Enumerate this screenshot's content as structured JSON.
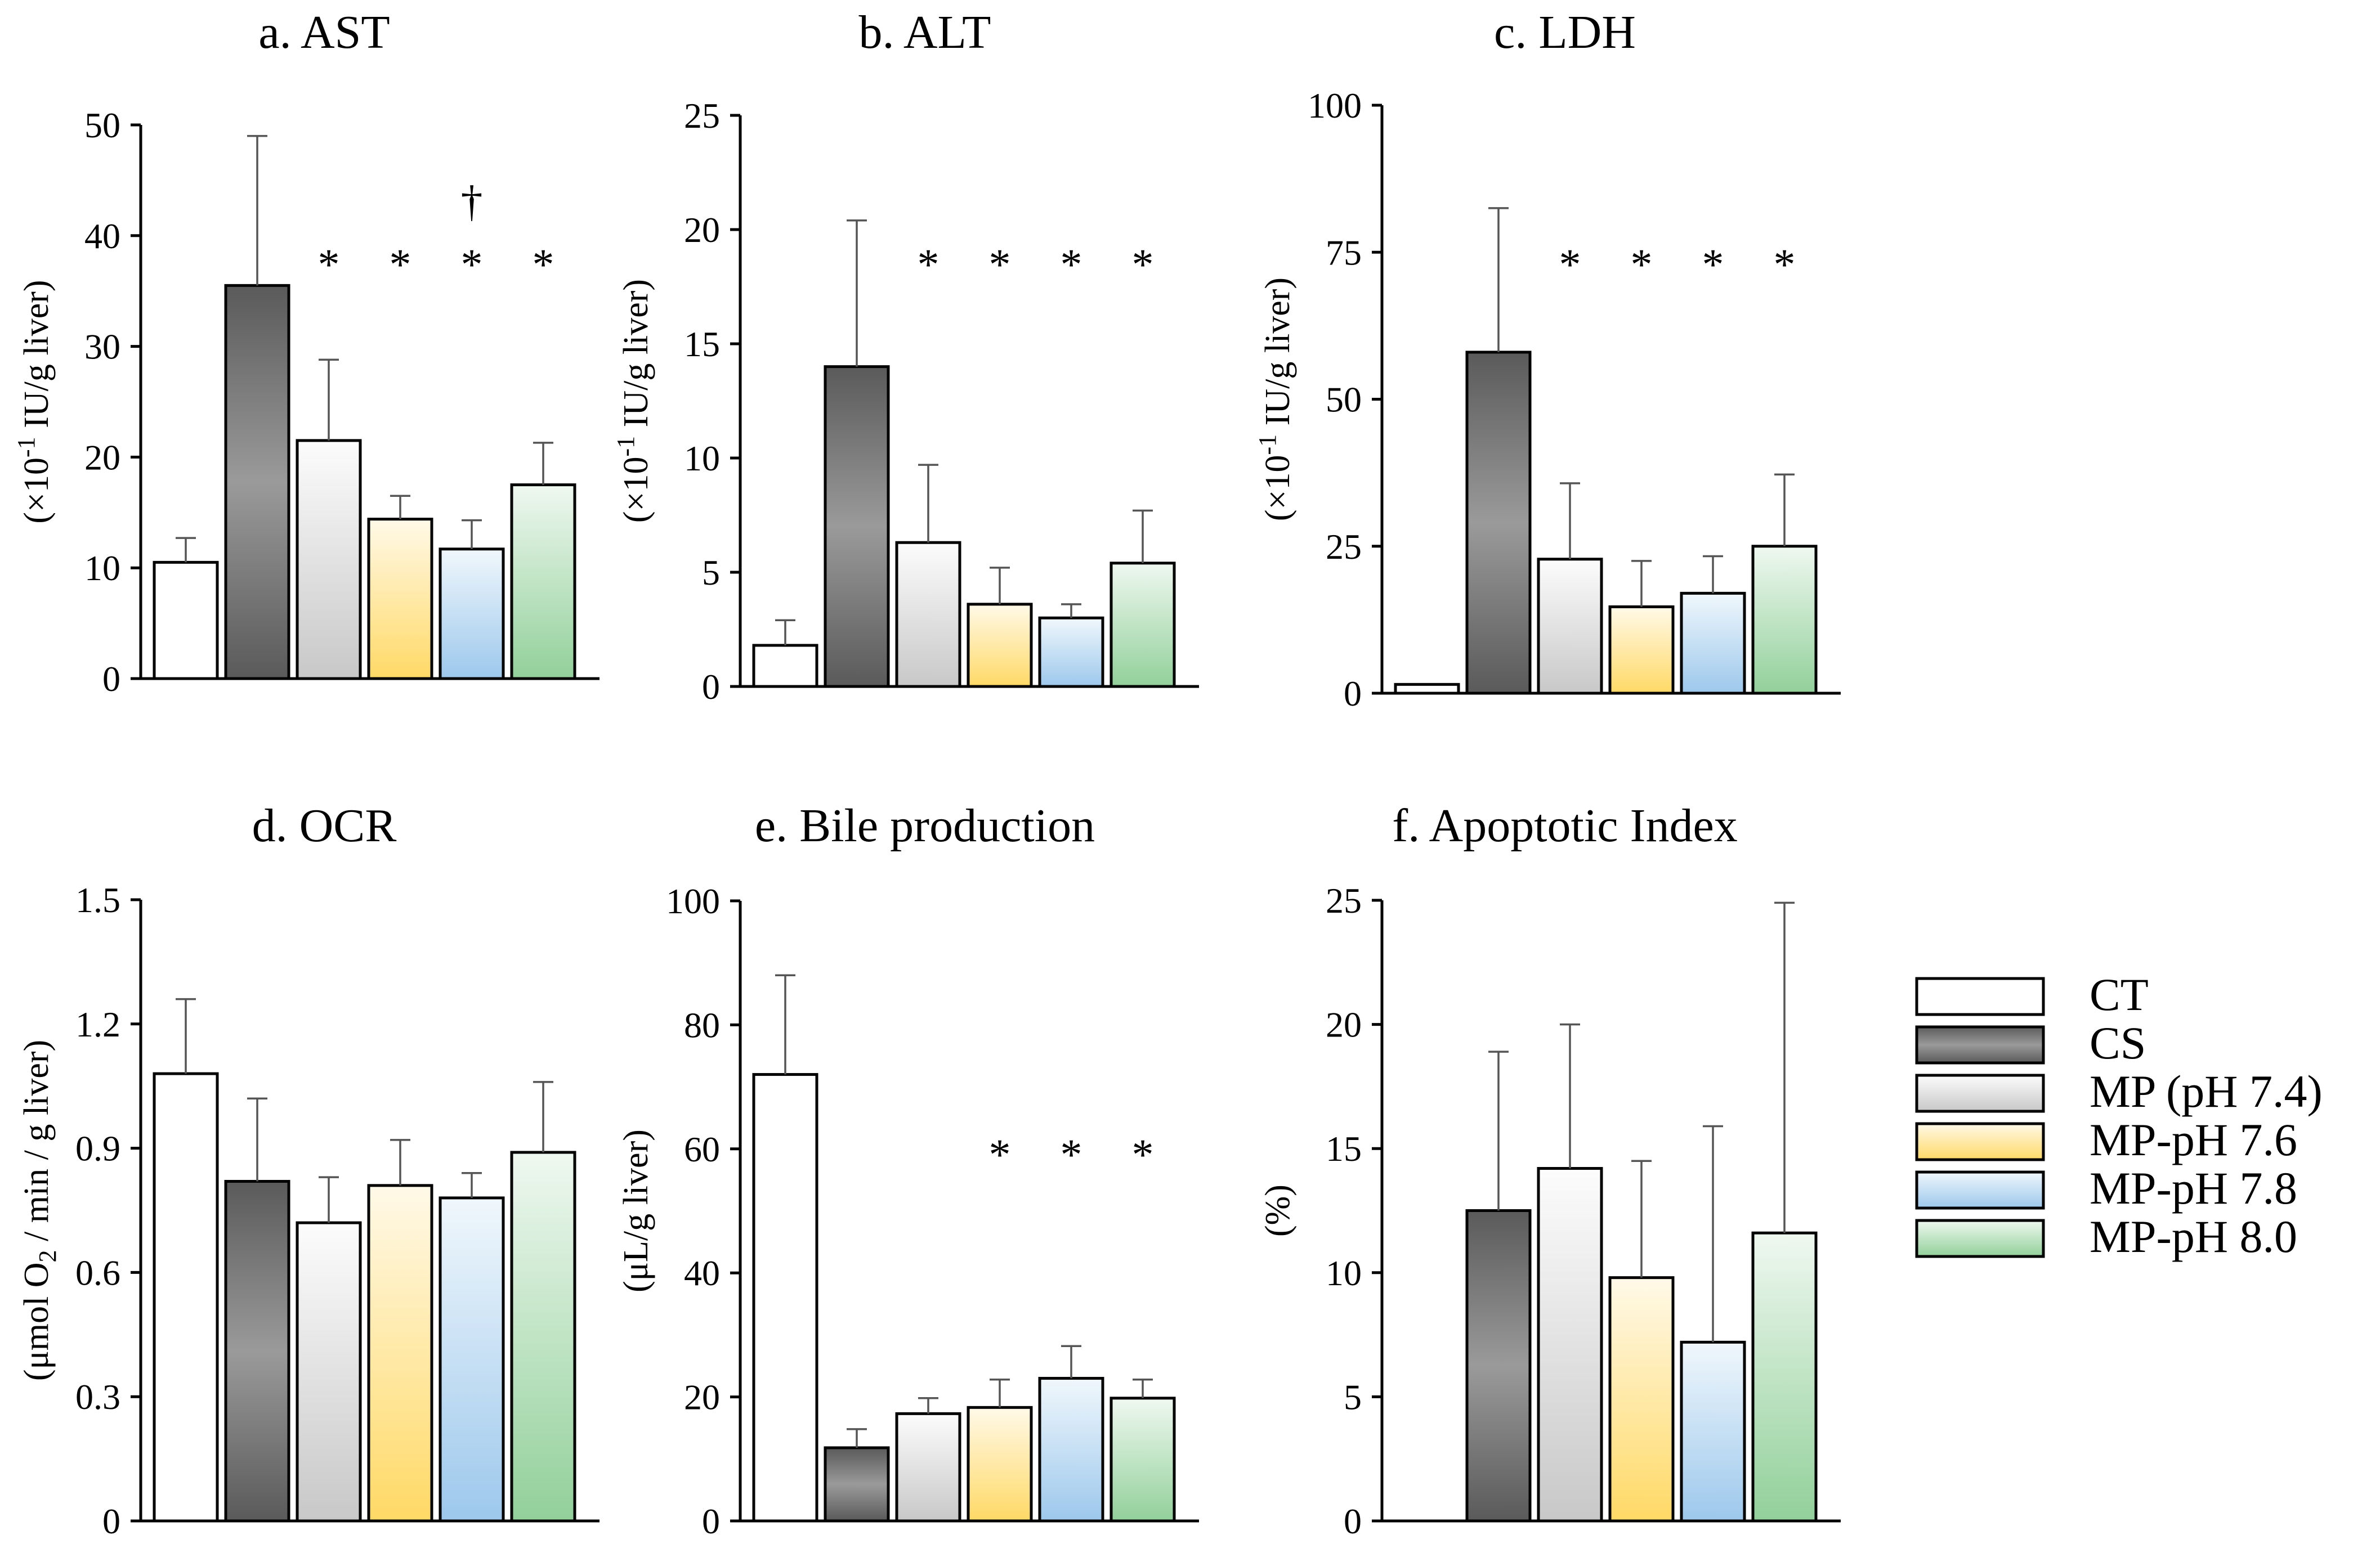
{
  "colors": {
    "CT": "#ffffff",
    "CS": "#808080",
    "MP74": "#e8e8e8",
    "MP76": "#ffd966",
    "MP78": "#9dc8ec",
    "MP80": "#92d09a"
  },
  "legend": {
    "items": [
      {
        "key": "CT",
        "label": "CT"
      },
      {
        "key": "CS",
        "label": "CS"
      },
      {
        "key": "MP74",
        "label": "MP (pH 7.4)"
      },
      {
        "key": "MP76",
        "label": "MP-pH 7.6"
      },
      {
        "key": "MP78",
        "label": "MP-pH 7.8"
      },
      {
        "key": "MP80",
        "label": "MP-pH 8.0"
      }
    ]
  },
  "chart_data": [
    {
      "id": "ast",
      "type": "bar",
      "title": "a. AST",
      "ylabel": [
        "(×10",
        "-1",
        " IU/g liver)"
      ],
      "ylim": [
        0,
        50
      ],
      "yticks": [
        "0",
        "10",
        "20",
        "30",
        "40",
        "50"
      ],
      "categories": [
        "CT",
        "CS",
        "MP74",
        "MP76",
        "MP78",
        "MP80"
      ],
      "values": [
        10.5,
        35.5,
        21.5,
        14.4,
        11.7,
        17.5
      ],
      "errors": [
        2.2,
        13.5,
        7.3,
        2.1,
        2.6,
        3.8
      ],
      "marks": [
        "",
        "",
        "*",
        "*",
        "*",
        "*"
      ],
      "dagger": [
        "",
        "",
        "",
        "",
        "†",
        ""
      ]
    },
    {
      "id": "alt",
      "type": "bar",
      "title": "b. ALT",
      "ylabel": [
        "(×10",
        "-1",
        " IU/g liver)"
      ],
      "ylim": [
        0,
        25
      ],
      "yticks": [
        "0",
        "5",
        "10",
        "15",
        "20",
        "25"
      ],
      "categories": [
        "CT",
        "CS",
        "MP74",
        "MP76",
        "MP78",
        "MP80"
      ],
      "values": [
        1.8,
        14.0,
        6.3,
        3.6,
        3.0,
        5.4
      ],
      "errors": [
        1.1,
        6.4,
        3.4,
        1.6,
        0.6,
        2.3
      ],
      "marks": [
        "",
        "",
        "*",
        "*",
        "*",
        "*"
      ],
      "dagger": [
        "",
        "",
        "",
        "",
        "",
        ""
      ]
    },
    {
      "id": "ldh",
      "type": "bar",
      "title": "c. LDH",
      "ylabel": [
        "(×10",
        "-1",
        " IU/g liver)"
      ],
      "ylim": [
        0,
        100
      ],
      "yticks": [
        "0",
        "25",
        "50",
        "75",
        "100"
      ],
      "categories": [
        "CT",
        "CS",
        "MP74",
        "MP76",
        "MP78",
        "MP80"
      ],
      "values": [
        1.5,
        58.0,
        22.8,
        14.7,
        17.0,
        25.0
      ],
      "errors": [
        0.0,
        24.5,
        12.9,
        7.8,
        6.3,
        12.2
      ],
      "marks": [
        "",
        "",
        "*",
        "*",
        "*",
        "*"
      ],
      "dagger": [
        "",
        "",
        "",
        "",
        "",
        ""
      ]
    },
    {
      "id": "ocr",
      "type": "bar",
      "title": "d. OCR",
      "ylabel": [
        "(μmol O",
        "2",
        " / min / g liver)"
      ],
      "ylim": [
        0,
        1.5
      ],
      "yticks": [
        "0",
        "0.3",
        "0.6",
        "0.9",
        "1.2",
        "1.5"
      ],
      "categories": [
        "CT",
        "CS",
        "MP74",
        "MP76",
        "MP78",
        "MP80"
      ],
      "values": [
        1.08,
        0.82,
        0.72,
        0.81,
        0.78,
        0.89
      ],
      "errors": [
        0.18,
        0.2,
        0.11,
        0.11,
        0.06,
        0.17
      ],
      "marks": [
        "",
        "",
        "",
        "",
        "",
        ""
      ],
      "dagger": [
        "",
        "",
        "",
        "",
        "",
        ""
      ]
    },
    {
      "id": "bile",
      "type": "bar",
      "title": "e. Bile production",
      "ylabel": [
        "(μL/g liver)",
        "",
        ""
      ],
      "ylim": [
        0,
        100
      ],
      "yticks": [
        "0",
        "20",
        "40",
        "60",
        "80",
        "100"
      ],
      "categories": [
        "CT",
        "CS",
        "MP74",
        "MP76",
        "MP78",
        "MP80"
      ],
      "values": [
        72,
        11.8,
        17.3,
        18.3,
        23.0,
        19.8
      ],
      "errors": [
        16,
        3.0,
        2.5,
        4.5,
        5.2,
        3.0
      ],
      "marks": [
        "",
        "",
        "",
        "*",
        "*",
        "*"
      ],
      "dagger": [
        "",
        "",
        "",
        "",
        "",
        ""
      ]
    },
    {
      "id": "apoptotic",
      "type": "bar",
      "title": "f. Apoptotic Index",
      "ylabel": [
        "(%)",
        "",
        ""
      ],
      "ylim": [
        0,
        25
      ],
      "yticks": [
        "0",
        "5",
        "10",
        "15",
        "20",
        "25"
      ],
      "categories": [
        "CT",
        "CS",
        "MP74",
        "MP76",
        "MP78",
        "MP80"
      ],
      "values": [
        0,
        12.5,
        14.2,
        9.8,
        7.2,
        11.6
      ],
      "errors": [
        0,
        6.4,
        5.8,
        4.7,
        8.7,
        13.3
      ],
      "marks": [
        "",
        "",
        "",
        "",
        "",
        ""
      ],
      "dagger": [
        "",
        "",
        "",
        "",
        "",
        ""
      ]
    }
  ]
}
